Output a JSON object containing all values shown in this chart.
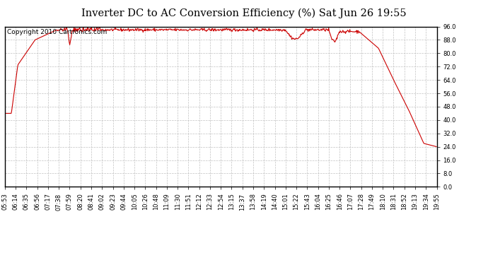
{
  "title": "Inverter DC to AC Conversion Efficiency (%) Sat Jun 26 19:55",
  "copyright": "Copyright 2010 Cartronics.com",
  "line_color": "#cc0000",
  "bg_color": "#ffffff",
  "plot_bg_color": "#ffffff",
  "grid_color": "#bbbbbb",
  "ylim": [
    0.0,
    96.0
  ],
  "yticks": [
    0.0,
    8.0,
    16.0,
    24.0,
    32.0,
    40.0,
    48.0,
    56.0,
    64.0,
    72.0,
    80.0,
    88.0,
    96.0
  ],
  "xtick_labels": [
    "05:53",
    "06:14",
    "06:35",
    "06:56",
    "07:17",
    "07:38",
    "07:59",
    "08:20",
    "08:41",
    "09:02",
    "09:23",
    "09:44",
    "10:05",
    "10:26",
    "10:48",
    "11:09",
    "11:30",
    "11:51",
    "12:12",
    "12:33",
    "12:54",
    "13:15",
    "13:37",
    "13:58",
    "14:19",
    "14:40",
    "15:01",
    "15:22",
    "15:43",
    "16:04",
    "16:25",
    "16:46",
    "17:07",
    "17:28",
    "17:49",
    "18:10",
    "18:31",
    "18:52",
    "19:13",
    "19:34",
    "19:55"
  ],
  "title_fontsize": 10.5,
  "tick_fontsize": 6.0,
  "copyright_fontsize": 6.5,
  "linewidth": 0.8
}
